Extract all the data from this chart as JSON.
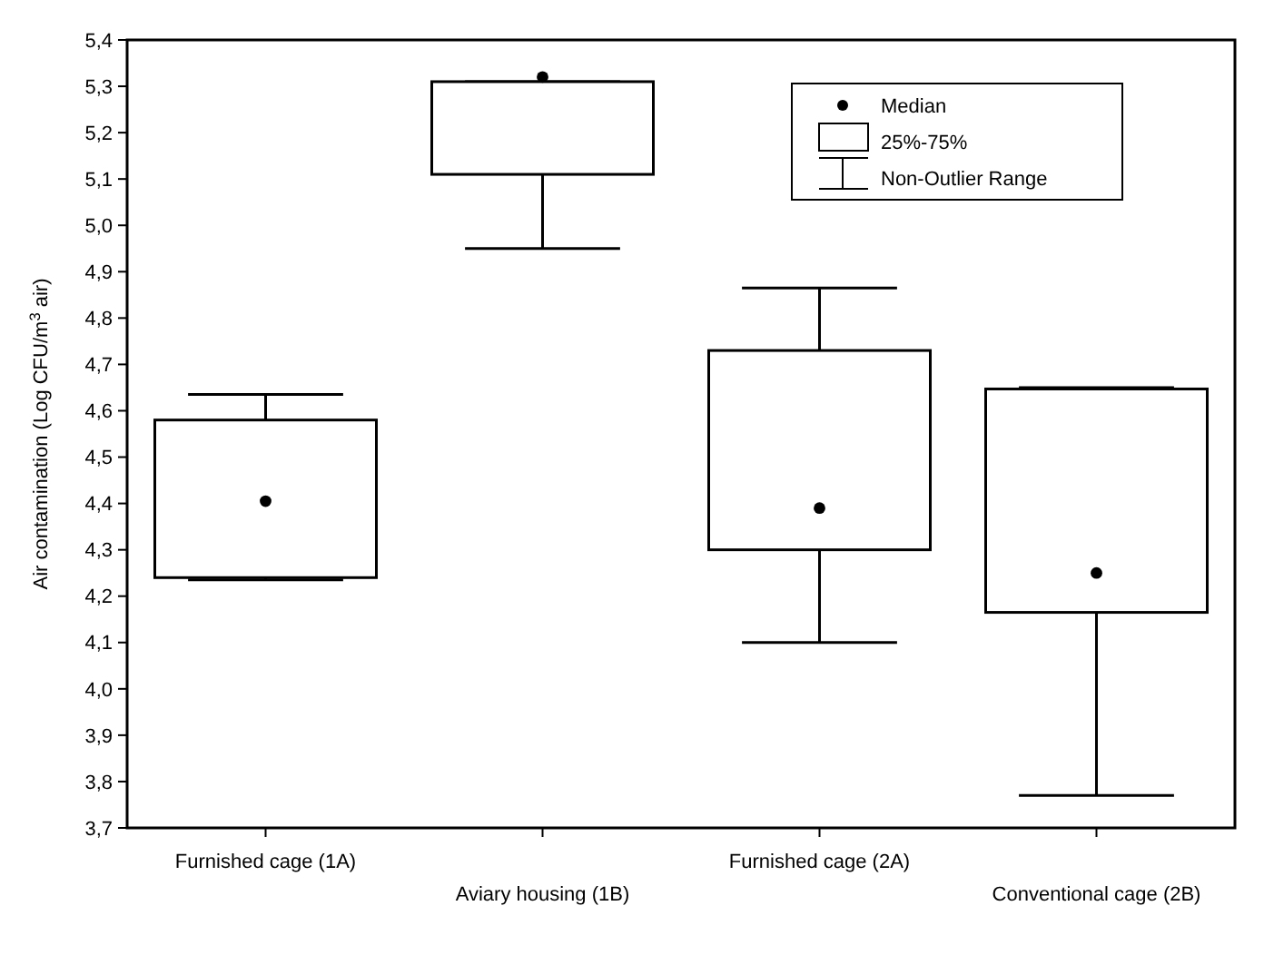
{
  "chart_data": {
    "type": "box",
    "ylabel": "Air contamination (Log CFU/m$^{3}$ air)",
    "categories": [
      "Furnished cage (1A)",
      "Aviary housing (1B)",
      "Furnished cage (2A)",
      "Conventional cage (2B)"
    ],
    "boxes": [
      {
        "low": 4.235,
        "q1": 4.24,
        "median": 4.405,
        "q3": 4.58,
        "high": 4.635
      },
      {
        "low": 4.95,
        "q1": 5.11,
        "median": 5.32,
        "q3": 5.31,
        "high": 5.31
      },
      {
        "low": 4.1,
        "q1": 4.3,
        "median": 4.39,
        "q3": 4.73,
        "high": 4.865
      },
      {
        "low": 3.77,
        "q1": 4.165,
        "median": 4.25,
        "q3": 4.647,
        "high": 4.65
      }
    ],
    "ylim": [
      3.7,
      5.4
    ],
    "yticks": [
      {
        "value": 3.7,
        "label": "3,7"
      },
      {
        "value": 3.8,
        "label": "3,8"
      },
      {
        "value": 3.9,
        "label": "3,9"
      },
      {
        "value": 4.0,
        "label": "4,0"
      },
      {
        "value": 4.1,
        "label": "4,1"
      },
      {
        "value": 4.2,
        "label": "4,2"
      },
      {
        "value": 4.3,
        "label": "4,3"
      },
      {
        "value": 4.4,
        "label": "4,4"
      },
      {
        "value": 4.5,
        "label": "4,5"
      },
      {
        "value": 4.6,
        "label": "4,6"
      },
      {
        "value": 4.7,
        "label": "4,7"
      },
      {
        "value": 4.8,
        "label": "4,8"
      },
      {
        "value": 4.9,
        "label": "4,9"
      },
      {
        "value": 5.0,
        "label": "5,0"
      },
      {
        "value": 5.1,
        "label": "5,1"
      },
      {
        "value": 5.2,
        "label": "5,2"
      },
      {
        "value": 5.3,
        "label": "5,3"
      },
      {
        "value": 5.4,
        "label": "5,4"
      }
    ],
    "marker": "circle",
    "annotations": [
      "Median",
      "25%-75%",
      "Non-Outlier Range"
    ]
  }
}
